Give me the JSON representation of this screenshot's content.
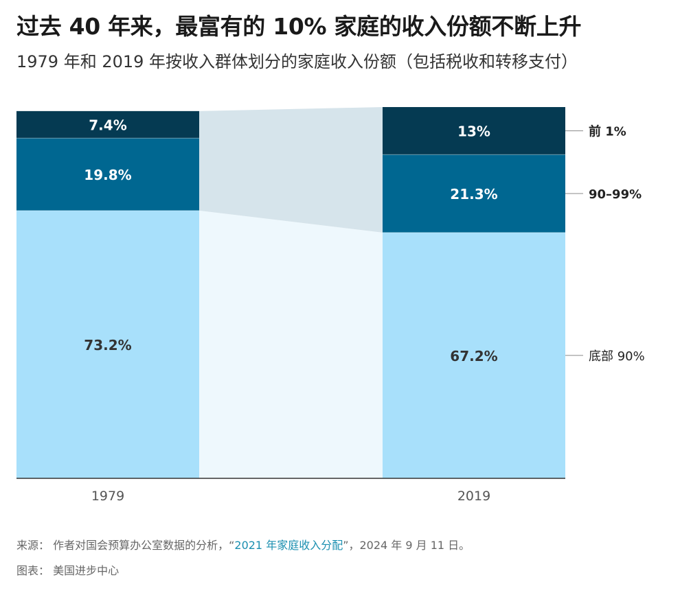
{
  "title": "过去 40 年来，最富有的 10% 家庭的收入份额不断上升",
  "subtitle": "1979 年和 2019 年按收入群体划分的家庭收入份额（包括税收和转移支付）",
  "chart_data": {
    "type": "bar",
    "stacked": true,
    "title": "过去 40 年来，最富有的 10% 家庭的收入份额不断上升",
    "subtitle": "1979 年和 2019 年按收入群体划分的家庭收入份额（包括税收和转移支付）",
    "categories": [
      "1979",
      "2019"
    ],
    "series": [
      {
        "name": "底部 90%",
        "values": [
          73.2,
          67.2
        ],
        "labels": [
          "73.2%",
          "67.2%"
        ],
        "color": "#a8e0fb"
      },
      {
        "name": "90–99%",
        "values": [
          19.8,
          21.3
        ],
        "labels": [
          "19.8%",
          "21.3%"
        ],
        "color": "#006791"
      },
      {
        "name": "前 1%",
        "values": [
          7.4,
          13
        ],
        "labels": [
          "7.4%",
          "13%"
        ],
        "color": "#053a52"
      }
    ],
    "legend_placement": "right, direct labels",
    "grid": false,
    "connector_colors": {
      "bottom": "#eef8fd",
      "upper": "#d6e4eb"
    }
  },
  "footer": {
    "source_prefix": "来源：  作者对国会预算办公室数据的分析，“",
    "source_link": "2021 年家庭收入分配",
    "source_suffix": "”，2024 年 9 月 11 日。",
    "credit": "图表：  美国进步中心"
  }
}
